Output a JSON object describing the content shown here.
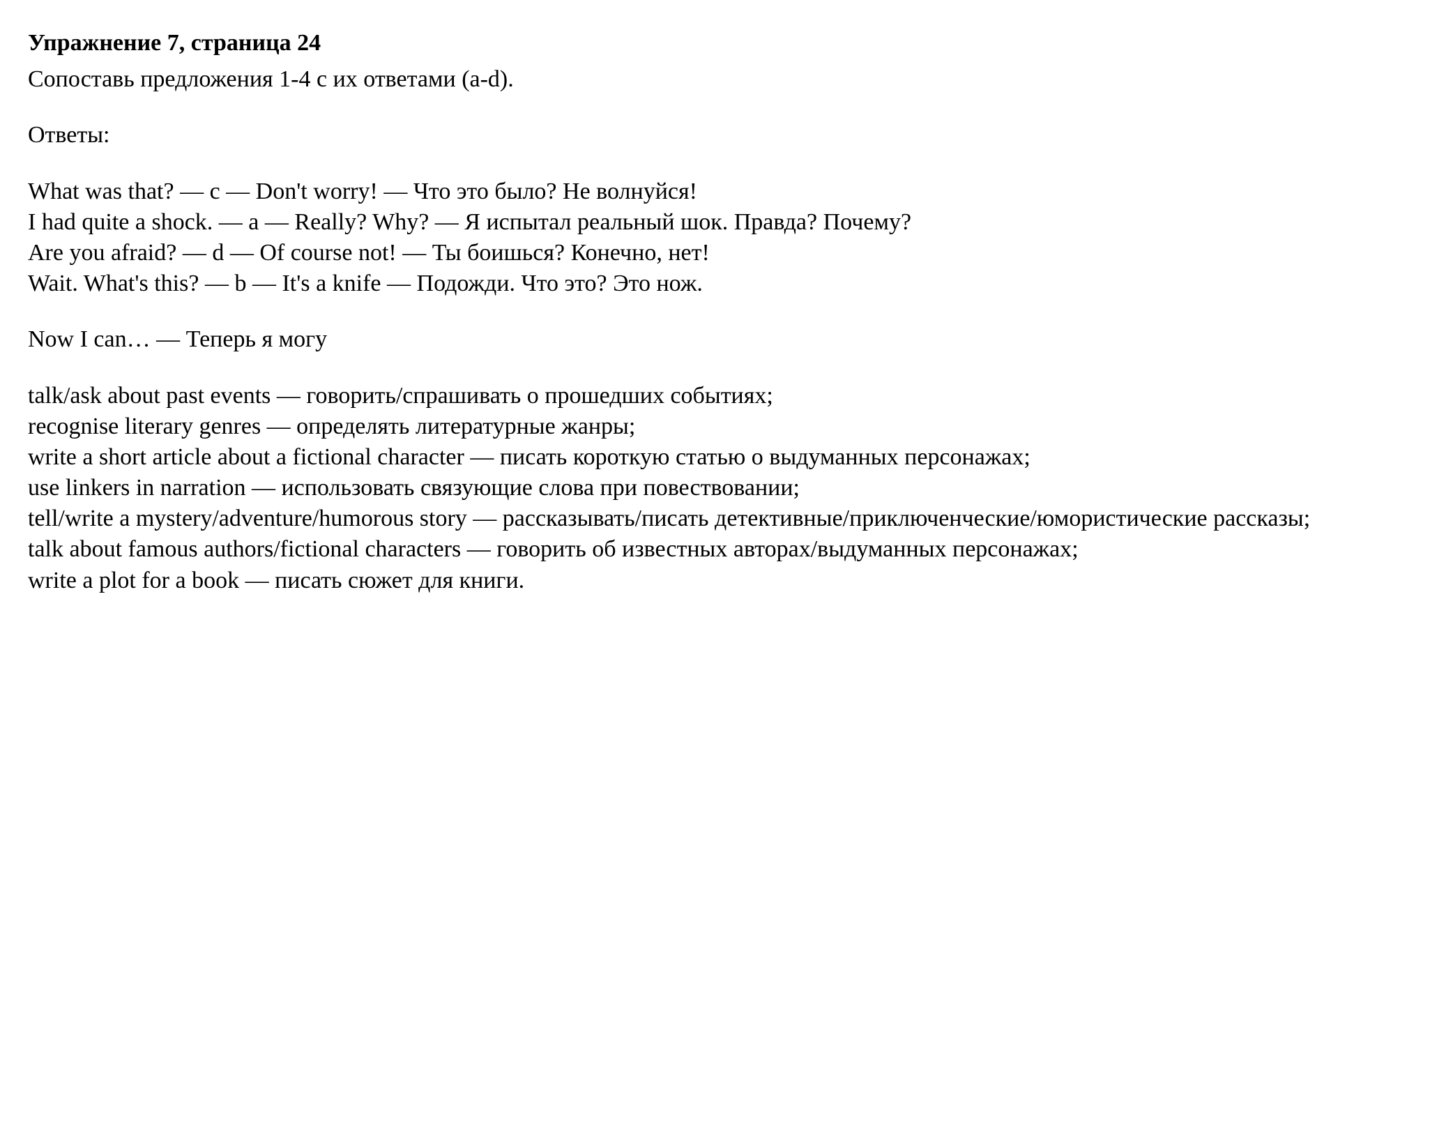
{
  "title": "Упражнение 7, страница 24",
  "instruction": "Сопоставь предложения 1-4 с их ответами (a-d).",
  "answers_label": "Ответы:",
  "answers": {
    "line1": "What was that? — c — Don't worry! — Что это было? Не волнуйся!",
    "line2": "I had quite a shock. — a — Really? Why? — Я испытал реальный шок. Правда? Почему?",
    "line3": "Are you afraid? — d — Of course not! — Ты боишься? Конечно, нет!",
    "line4": "Wait. What's this? — b — It's a knife — Подожди. Что это? Это нож."
  },
  "now_i_can": "Now I can… — Теперь я могу",
  "skills": {
    "line1": "talk/ask about past events — говорить/спрашивать о прошедших событиях;",
    "line2": "recognise literary genres — определять литературные жанры;",
    "line3": "write a short article about a fictional character — писать короткую статью о выдуманных персонажах;",
    "line4": "use linkers in narration — использовать связующие слова при повествовании;",
    "line5": "tell/write a mystery/adventure/humorous story — рассказывать/писать детективные/приключенческие/юмористические рассказы;",
    "line6": "talk about famous authors/fictional characters — говорить об известных авторах/выдуманных персонажах;",
    "line7": "write a plot for a book — писать сюжет для книги."
  },
  "colors": {
    "background": "#ffffff",
    "text": "#000000"
  },
  "typography": {
    "font_family": "Georgia, Times New Roman, serif",
    "base_fontsize": 34,
    "title_fontweight": "bold"
  }
}
